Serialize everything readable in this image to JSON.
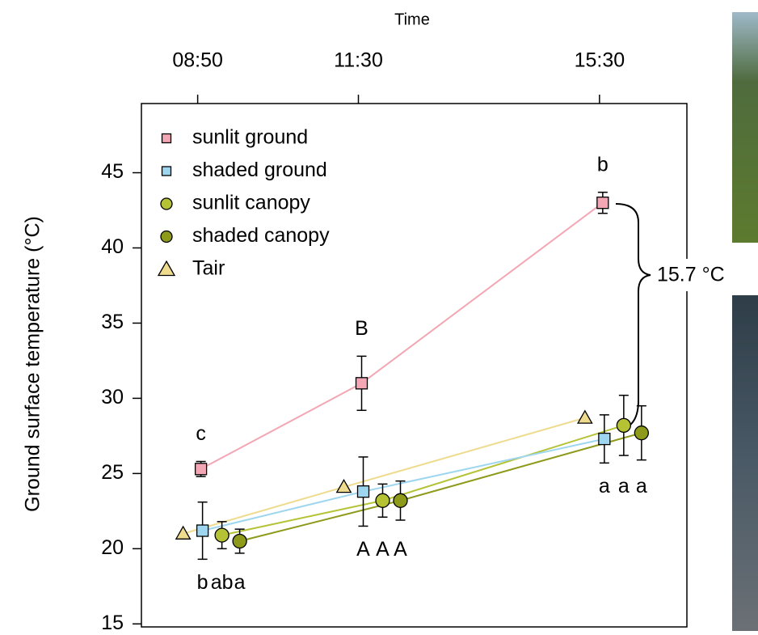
{
  "chart_data": {
    "type": "line",
    "x_title": "Time",
    "y_title": "Ground surface temperature (°C)",
    "x": [
      530,
      690,
      930
    ],
    "xlim": [
      474,
      1017
    ],
    "xticks": [
      {
        "value": 530,
        "label": "08:50"
      },
      {
        "value": 690,
        "label": "11:30"
      },
      {
        "value": 930,
        "label": "15:30"
      }
    ],
    "ylim": [
      14.8,
      49.6
    ],
    "yticks": [
      15,
      20,
      25,
      30,
      35,
      40,
      45
    ],
    "legend": "top-left",
    "annotation": "15.7 °C",
    "series": [
      {
        "name": "sunlit ground",
        "color": "#f3a6b4",
        "marker": "square",
        "values": [
          25.3,
          31.0,
          43.0
        ],
        "errors": [
          0.5,
          1.8,
          0.7
        ],
        "letters": [
          "c",
          "B",
          "b"
        ],
        "letter_side": "above"
      },
      {
        "name": "shaded ground",
        "color": "#9ed6ef",
        "marker": "square",
        "values": [
          21.2,
          23.8,
          27.3
        ],
        "errors": [
          1.9,
          2.3,
          1.6
        ],
        "letters": [
          "b",
          "A",
          "a"
        ],
        "letter_side": "below"
      },
      {
        "name": "sunlit canopy",
        "color": "#b4c234",
        "marker": "circle",
        "values": [
          20.9,
          23.2,
          28.2
        ],
        "errors": [
          0.9,
          1.1,
          2.0
        ],
        "letters": [
          "ab",
          "A",
          "a"
        ],
        "letter_side": "below"
      },
      {
        "name": "shaded canopy",
        "color": "#8e9a1a",
        "marker": "circle",
        "values": [
          20.5,
          23.2,
          27.7
        ],
        "errors": [
          0.8,
          1.3,
          1.8
        ],
        "letters": [
          "a",
          "A",
          "a"
        ],
        "letter_side": "below"
      },
      {
        "name": "Tair",
        "color": "#eedb8e",
        "marker": "triangle",
        "values": [
          21.0,
          24.1,
          28.7
        ]
      }
    ]
  }
}
